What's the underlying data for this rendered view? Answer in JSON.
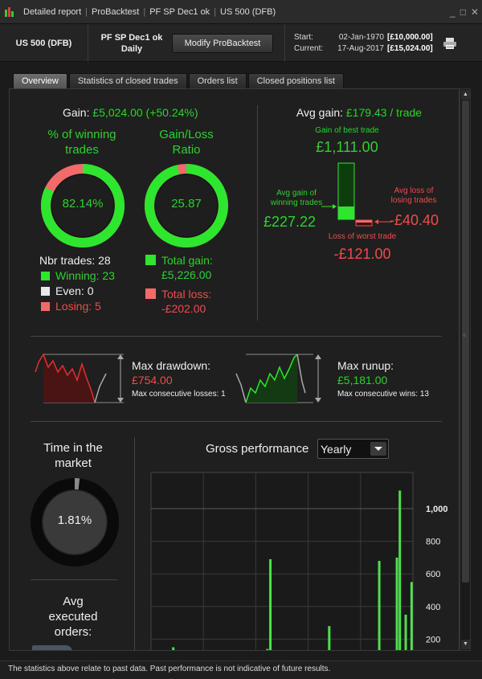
{
  "window": {
    "crumbs": [
      "Detailed report",
      "ProBacktest",
      "PF SP Dec1 ok",
      "US 500 (DFB)"
    ],
    "controls": [
      "_",
      "□",
      "✕"
    ]
  },
  "header": {
    "instrument": "US 500 (DFB)",
    "strategy_name": "PF SP Dec1 ok",
    "timeframe": "Daily",
    "modify_label": "Modify ProBacktest",
    "start_label": "Start:",
    "start_date": "02-Jan-1970",
    "start_value": "[£10,000.00]",
    "current_label": "Current:",
    "current_date": "17-Aug-2017",
    "current_value": "[£15,024.00]",
    "print_icon": "print-icon"
  },
  "tabs": [
    "Overview",
    "Statistics of closed trades",
    "Orders list",
    "Closed positions list"
  ],
  "overview": {
    "gain_label": "Gain:",
    "gain_value": "£5,024.00 (+50.24%)",
    "winning_title_1": "% of winning",
    "winning_title_2": "trades",
    "winning_pct": "82.14%",
    "winning_fraction": 0.8214,
    "ratio_title_1": "Gain/Loss",
    "ratio_title_2": "Ratio",
    "ratio_value": "25.87",
    "ratio_fraction": 0.963,
    "nbr_trades": "Nbr trades: 28",
    "winning": "Winning: 23",
    "even": "Even: 0",
    "losing": "Losing: 5",
    "total_gain_label": "Total gain:",
    "total_gain_value": "£5,226.00",
    "total_loss_label": "Total loss:",
    "total_loss_value": "-£202.00",
    "avg_gain_label": "Avg gain:",
    "avg_gain_value": "£179.43 / trade",
    "best_trade_label": "Gain of best trade",
    "best_trade_value": "£1,111.00",
    "avg_win_label_1": "Avg gain of",
    "avg_win_label_2": "winning trades",
    "avg_win_value": "£227.22",
    "avg_loss_label_1": "Avg loss of",
    "avg_loss_label_2": "losing trades",
    "avg_loss_value": "-£40.40",
    "worst_trade_label": "Loss of worst trade",
    "worst_trade_value": "-£121.00",
    "max_drawdown_label": "Max drawdown:",
    "max_drawdown_value": "£754.00",
    "max_consec_losses": "Max consecutive losses: 1",
    "max_runup_label": "Max runup:",
    "max_runup_value": "£5,181.00",
    "max_consec_wins": "Max consecutive wins: 13",
    "time_market_1": "Time in the",
    "time_market_2": "market",
    "time_market_value": "1.81%",
    "time_market_fraction": 0.0181,
    "avg_exec_1": "Avg",
    "avg_exec_2": "executed",
    "avg_exec_3": "orders:",
    "gross_perf_label": "Gross performance",
    "gross_perf_period": "Yearly"
  },
  "colors": {
    "gain": "#2fd12f",
    "loss": "#f04b4b",
    "ring_green": "#2ee62e",
    "ring_red": "#f26a6a",
    "even": "#e8e8e8"
  },
  "chart_data": {
    "type": "bar",
    "title": "Gross performance",
    "yticks": [
      200,
      400,
      600,
      800,
      1000
    ],
    "ytick_labels": [
      "200",
      "400",
      "600",
      "800",
      "1,000"
    ],
    "ylim": [
      0,
      1180
    ],
    "values": [
      0,
      0,
      0,
      0,
      0,
      0,
      0,
      150,
      0,
      0,
      0,
      0,
      0,
      0,
      0,
      0,
      0,
      0,
      0,
      0,
      0,
      0,
      0,
      0,
      0,
      0,
      0,
      0,
      0,
      0,
      0,
      0,
      0,
      0,
      0,
      0,
      0,
      0,
      0,
      140,
      690,
      0,
      90,
      20,
      0,
      120,
      0,
      0,
      0,
      0,
      0,
      0,
      0,
      0,
      0,
      0,
      0,
      0,
      0,
      0,
      280,
      0,
      0,
      0,
      0,
      0,
      0,
      0,
      0,
      0,
      0,
      0,
      0,
      0,
      0,
      0,
      0,
      680,
      0,
      0,
      0,
      0,
      0,
      700,
      1111,
      0,
      350,
      0,
      550
    ]
  }
}
